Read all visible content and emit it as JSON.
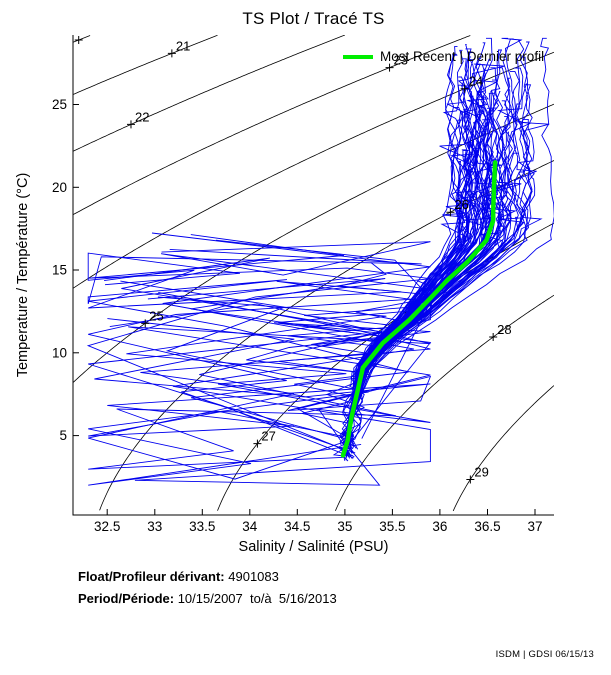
{
  "title": "TS Plot / Tracé TS",
  "legend": {
    "label": "Most Recent | Dernier profil",
    "color": "#00ee00"
  },
  "footer": {
    "float_label": "Float/Profileur dérivant:",
    "float_value": " 4901083",
    "period_label": "Period/Période:",
    "period_value": " 10/15/2007  to/à  5/16/2013"
  },
  "watermark": "ISDM | GDSI 06/15/13",
  "chart_data": {
    "type": "line",
    "title": "TS Plot / Tracé TS",
    "xlabel": "Salinity / Salinité (PSU)",
    "ylabel": "Temperature / Température (°C)",
    "xlim": [
      32.14,
      37.2
    ],
    "ylim": [
      0.2,
      29.2
    ],
    "x_ticks": [
      32.5,
      33,
      33.5,
      34,
      34.5,
      35,
      35.5,
      36,
      36.5,
      37
    ],
    "y_ticks": [
      5,
      10,
      15,
      20,
      25
    ],
    "grid": false,
    "legend_position": "top-right-inside",
    "legend_box": false,
    "axis_color": "#000000",
    "density_contours": {
      "comment": "sigma-t isopycnal curves computed from EOS-80 at surface pressure",
      "color": "#000000",
      "levels": [
        20,
        21,
        22,
        23,
        24,
        25,
        26,
        27,
        28,
        29
      ],
      "labels": [
        {
          "level": 20,
          "at_salinity": 32.2,
          "show_text": false
        },
        {
          "level": 21,
          "at_salinity": 33.18,
          "show_text": true
        },
        {
          "level": 22,
          "at_salinity": 32.75,
          "show_text": true
        },
        {
          "level": 23,
          "at_salinity": 35.47,
          "show_text": true
        },
        {
          "level": 24,
          "at_salinity": 36.26,
          "show_text": true
        },
        {
          "level": 25,
          "at_salinity": 32.9,
          "show_text": true
        },
        {
          "level": 26,
          "at_salinity": 36.11,
          "show_text": true
        },
        {
          "level": 27,
          "at_salinity": 34.08,
          "show_text": true
        },
        {
          "level": 28,
          "at_salinity": 36.56,
          "show_text": true
        },
        {
          "level": 29,
          "at_salinity": 36.32,
          "show_text": true
        }
      ]
    },
    "most_recent_profile": {
      "name": "Most Recent | Dernier profil",
      "color": "#00ee00",
      "line_width": 4.5,
      "points_salinity_temperature": [
        [
          36.58,
          21.5
        ],
        [
          36.57,
          20.2
        ],
        [
          36.56,
          18.6
        ],
        [
          36.56,
          18.0
        ],
        [
          36.49,
          16.8
        ],
        [
          36.29,
          15.5
        ],
        [
          36.08,
          14.4
        ],
        [
          35.9,
          13.3
        ],
        [
          35.68,
          12.0
        ],
        [
          35.4,
          10.6
        ],
        [
          35.19,
          9.1
        ],
        [
          35.13,
          7.6
        ],
        [
          35.07,
          6.1
        ],
        [
          35.03,
          4.7
        ],
        [
          34.98,
          3.8
        ]
      ]
    },
    "profile_ensemble": {
      "description": "All float profiles 10/15/2007 - 5/16/2013: dense near-vertical surface bundle at 36.0-37.1 PSU / 17-29 C converging along the mean TS curve to a deep point near 35.0 PSU / 3.8 C, plus noisy zigzag profiles spanning 32.3-35.9 PSU below 18 C",
      "color": "#0000ee",
      "line_width": 0.9,
      "seed": 11,
      "n_main_profiles": 80,
      "n_zigzag_profiles": 13,
      "n_noisy_profiles": 10,
      "surface_salinity_range": [
        36.02,
        37.12
      ],
      "surface_temp_range": [
        18.0,
        29.0
      ],
      "join_temp_range": [
        16.2,
        18.6
      ],
      "deep_point": [
        34.98,
        3.8
      ],
      "zigzag_salinity_range": [
        32.3,
        35.9
      ],
      "zigzag_temp_range": [
        2.0,
        17.8
      ]
    }
  }
}
